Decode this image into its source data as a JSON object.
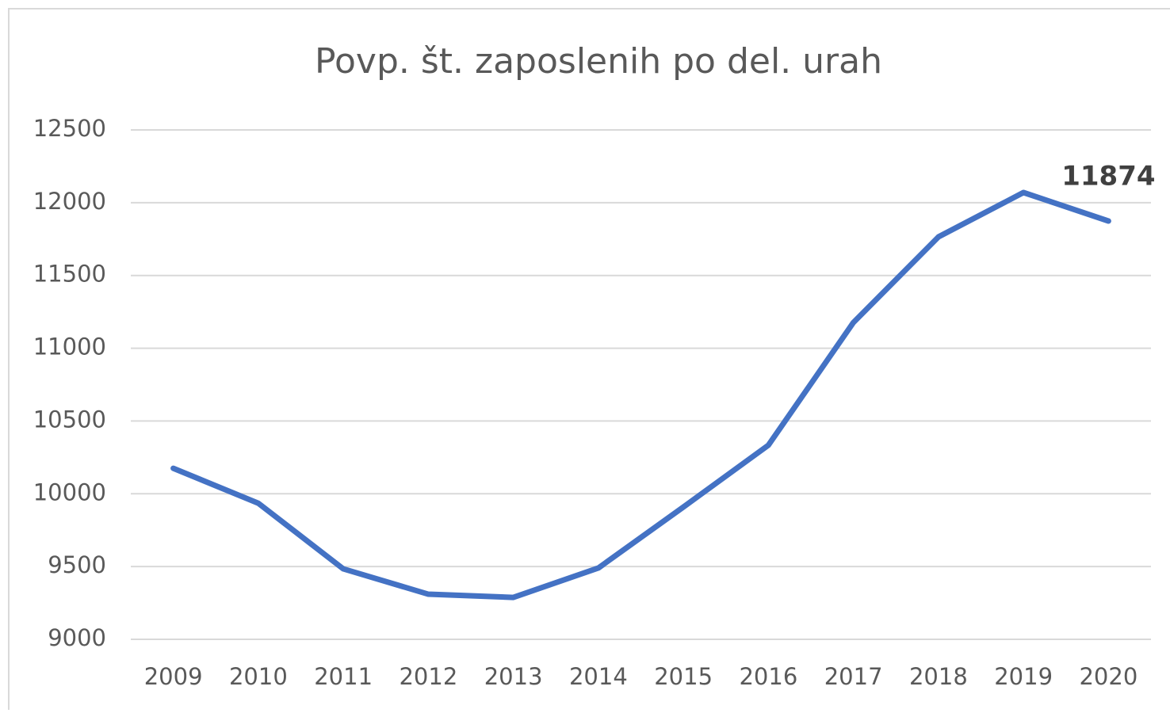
{
  "chart_data": {
    "type": "line",
    "title": "Povp. št. zaposlenih po del. urah",
    "categories": [
      "2009",
      "2010",
      "2011",
      "2012",
      "2013",
      "2014",
      "2015",
      "2016",
      "2017",
      "2018",
      "2019",
      "2020"
    ],
    "values": [
      10175,
      9935,
      9484,
      9310,
      9288,
      9490,
      9909,
      10334,
      11177,
      11765,
      12070,
      11874
    ],
    "color": "#4472c4",
    "ylim": [
      9000,
      12500
    ],
    "yticks": [
      9000,
      9500,
      10000,
      10500,
      11000,
      11500,
      12000,
      12500
    ],
    "grid": true
  }
}
